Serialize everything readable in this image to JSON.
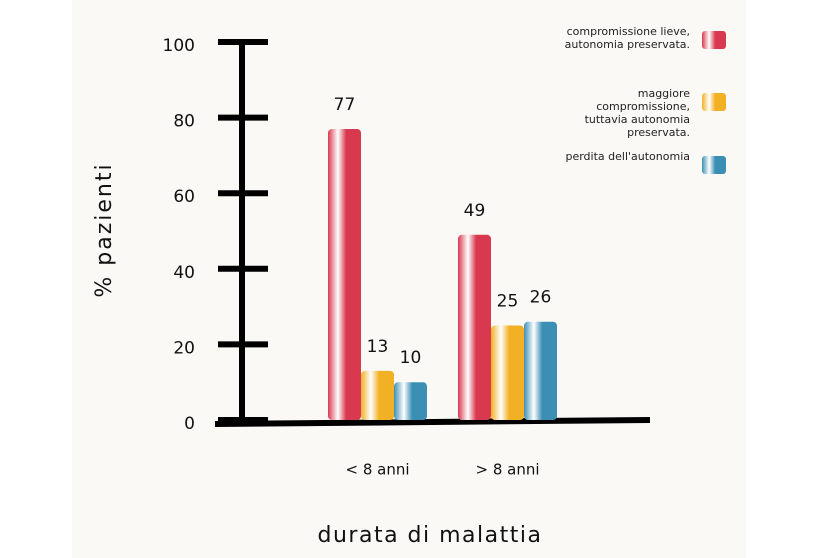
{
  "chart_data": {
    "type": "bar",
    "ylabel": "% pazienti",
    "xlabel": "durata di malattia",
    "categories": [
      "< 8 anni",
      "> 8 anni"
    ],
    "series": [
      {
        "name": "compromissione lieve, autonomia preservata.",
        "color": "#d9394e",
        "values": [
          77,
          49
        ]
      },
      {
        "name": "maggiore compromissione, tuttavia autonomia preservata.",
        "color": "#f2b024",
        "values": [
          13,
          25
        ]
      },
      {
        "name": "perdita dell'autonomia",
        "color": "#3c8fb4",
        "values": [
          10,
          26
        ]
      }
    ],
    "ylim": [
      0,
      100
    ],
    "yticks": [
      0,
      20,
      40,
      60,
      80,
      100
    ],
    "legend": "top-right"
  }
}
